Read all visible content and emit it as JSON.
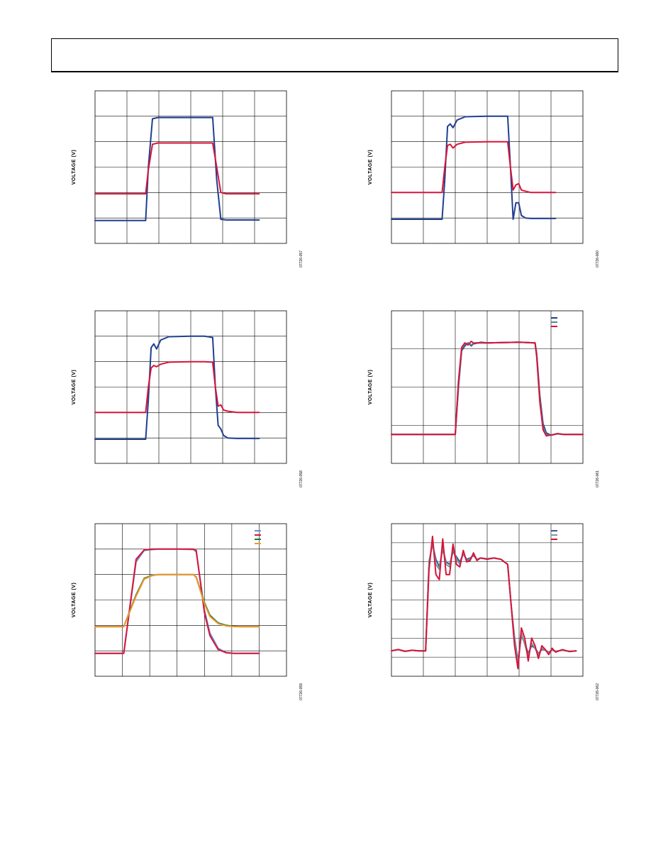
{
  "chart_data": [
    {
      "type": "line",
      "ylabel": "VOLTAGE (V)",
      "figure_id": "07726-057",
      "grid": "on",
      "x": [
        0,
        1,
        1.85,
        1.95,
        2.1,
        2.3,
        3.0,
        4.0,
        4.3,
        4.45,
        4.6,
        4.8,
        6.0
      ],
      "series": [
        {
          "color": "#1f3f8f",
          "values": [
            0.9,
            0.9,
            0.9,
            3.0,
            4.9,
            4.95,
            4.95,
            4.95,
            4.95,
            2.5,
            0.95,
            0.92,
            0.92
          ]
        },
        {
          "color": "#d8143a",
          "values": [
            1.95,
            1.95,
            1.95,
            2.9,
            3.9,
            3.95,
            3.95,
            3.95,
            3.95,
            3.0,
            2.0,
            1.95,
            1.95
          ]
        }
      ],
      "xlim": [
        0,
        7
      ],
      "ylim": [
        0,
        6
      ]
    },
    {
      "type": "line",
      "ylabel": "VOLTAGE (V)",
      "figure_id": "07726-060",
      "grid": "on",
      "x": [
        0,
        1,
        1.85,
        1.95,
        2.05,
        2.15,
        2.25,
        2.4,
        2.7,
        3.5,
        4.0,
        4.25,
        4.35,
        4.45,
        4.55,
        4.65,
        4.75,
        4.9,
        5.1,
        6.0
      ],
      "series": [
        {
          "color": "#1f3f8f",
          "values": [
            0.95,
            0.95,
            0.95,
            2.5,
            4.6,
            4.7,
            4.55,
            4.85,
            4.98,
            5.0,
            5.0,
            5.0,
            3.0,
            0.95,
            1.6,
            1.6,
            1.1,
            1.0,
            0.98,
            0.98
          ]
        },
        {
          "color": "#d8143a",
          "values": [
            2.0,
            2.0,
            2.0,
            3.0,
            3.85,
            3.9,
            3.75,
            3.9,
            3.98,
            4.0,
            4.0,
            4.0,
            3.0,
            2.1,
            2.3,
            2.35,
            2.1,
            2.05,
            2.0,
            2.0
          ]
        }
      ],
      "xlim": [
        0,
        7
      ],
      "ylim": [
        0,
        6
      ]
    },
    {
      "type": "line",
      "ylabel": "VOLTAGE (V)",
      "figure_id": "07726-058",
      "grid": "on",
      "x": [
        0,
        1,
        1.85,
        1.95,
        2.05,
        2.15,
        2.25,
        2.4,
        2.7,
        3.5,
        4.0,
        4.3,
        4.4,
        4.5,
        4.6,
        4.7,
        4.85,
        5.2,
        6.0
      ],
      "series": [
        {
          "color": "#1f3f8f",
          "values": [
            0.95,
            0.95,
            0.95,
            2.5,
            4.55,
            4.7,
            4.5,
            4.85,
            4.98,
            5.0,
            5.0,
            4.95,
            3.0,
            1.5,
            1.35,
            1.1,
            1.0,
            0.98,
            0.98
          ]
        },
        {
          "color": "#d8143a",
          "values": [
            2.0,
            2.0,
            2.0,
            3.0,
            3.75,
            3.85,
            3.8,
            3.9,
            3.98,
            4.0,
            4.0,
            3.98,
            3.0,
            2.25,
            2.3,
            2.1,
            2.05,
            2.0,
            2.0
          ]
        }
      ],
      "xlim": [
        0,
        7
      ],
      "ylim": [
        0,
        6
      ]
    },
    {
      "type": "line",
      "ylabel": "VOLTAGE (V)",
      "figure_id": "07726-061",
      "grid": "on",
      "x": [
        0,
        1,
        2.0,
        2.1,
        2.2,
        2.3,
        2.4,
        2.5,
        2.6,
        2.8,
        3.0,
        4.0,
        4.5,
        4.55,
        4.65,
        4.75,
        4.85,
        5.0,
        5.2,
        5.4,
        6.0
      ],
      "series": [
        {
          "color": "#1f3f8f",
          "values": [
            0.95,
            0.95,
            0.95,
            2.5,
            3.7,
            3.85,
            3.95,
            3.85,
            3.95,
            3.95,
            3.95,
            3.97,
            3.95,
            3.6,
            2.2,
            1.3,
            1.0,
            0.92,
            0.97,
            0.95,
            0.95
          ]
        },
        {
          "color": "#4a8a9a",
          "values": [
            0.95,
            0.95,
            0.95,
            2.6,
            3.75,
            3.9,
            3.95,
            3.88,
            3.95,
            3.95,
            3.95,
            3.97,
            3.95,
            3.55,
            2.1,
            1.2,
            0.95,
            0.92,
            0.98,
            0.95,
            0.95
          ]
        },
        {
          "color": "#d8143a",
          "values": [
            0.95,
            0.95,
            0.95,
            2.7,
            3.8,
            3.95,
            3.88,
            4.0,
            3.92,
            3.97,
            3.95,
            3.97,
            3.95,
            3.5,
            2.0,
            1.1,
            0.9,
            0.93,
            0.97,
            0.95,
            0.95
          ]
        }
      ],
      "xlim": [
        0,
        6
      ],
      "ylim": [
        0,
        5
      ]
    },
    {
      "type": "line",
      "ylabel": "VOLTAGE (V)",
      "figure_id": "07726-059",
      "grid": "on",
      "x": [
        0,
        1,
        1.05,
        1.5,
        1.8,
        2.1,
        2.3,
        2.8,
        3.0,
        3.6,
        3.7,
        4.0,
        4.2,
        4.5,
        4.8,
        5.1,
        5.3,
        6.0
      ],
      "series": [
        {
          "color": "#6a8fc8",
          "values": [
            0.9,
            0.9,
            0.9,
            4.5,
            4.95,
            4.98,
            5.0,
            5.0,
            5.0,
            4.98,
            4.9,
            2.6,
            1.7,
            1.1,
            0.93,
            0.9,
            0.9,
            0.9
          ]
        },
        {
          "color": "#d8143a",
          "values": [
            0.9,
            0.9,
            0.9,
            4.6,
            4.97,
            5.0,
            5.0,
            5.0,
            5.0,
            5.0,
            4.95,
            2.5,
            1.6,
            1.05,
            0.92,
            0.9,
            0.9,
            0.9
          ]
        },
        {
          "color": "#1a7a3a",
          "values": [
            1.95,
            1.95,
            1.95,
            3.2,
            3.85,
            3.97,
            4.0,
            4.0,
            4.0,
            4.0,
            3.9,
            2.9,
            2.4,
            2.1,
            2.0,
            1.96,
            1.95,
            1.95
          ]
        },
        {
          "color": "#f0962a",
          "values": [
            1.95,
            1.95,
            1.95,
            3.15,
            3.82,
            3.96,
            4.0,
            4.0,
            4.0,
            4.0,
            3.88,
            2.85,
            2.35,
            2.07,
            1.98,
            1.95,
            1.95,
            1.95
          ]
        }
      ],
      "xlim": [
        0,
        7
      ],
      "ylim": [
        0,
        6
      ]
    },
    {
      "type": "line",
      "ylabel": "VOLTAGE (V)",
      "figure_id": "07726-062",
      "grid": "on",
      "x": [
        0,
        0.2,
        0.4,
        0.6,
        0.8,
        1.0,
        1.1,
        1.2,
        1.3,
        1.4,
        1.5,
        1.6,
        1.7,
        1.8,
        1.9,
        2.0,
        2.1,
        2.2,
        2.3,
        2.4,
        2.5,
        2.6,
        2.8,
        3.0,
        3.2,
        3.4,
        3.5,
        3.6,
        3.7,
        3.8,
        3.9,
        4.0,
        4.1,
        4.2,
        4.3,
        4.4,
        4.5,
        4.6,
        4.7,
        4.8,
        5.0,
        5.2,
        5.4
      ],
      "series": [
        {
          "color": "#3a5a9a",
          "values": [
            1.0,
            1.05,
            0.98,
            1.02,
            1.0,
            1.0,
            4.5,
            5.2,
            4.6,
            4.3,
            5.0,
            4.5,
            4.4,
            4.9,
            4.7,
            4.5,
            4.8,
            4.6,
            4.65,
            4.75,
            4.6,
            4.65,
            4.62,
            4.65,
            4.6,
            4.4,
            2.8,
            1.5,
            0.6,
            1.6,
            1.3,
            0.9,
            1.2,
            1.1,
            0.9,
            1.05,
            1.02,
            0.95,
            1.03,
            0.98,
            1.02,
            0.98,
            1.0
          ]
        },
        {
          "color": "#7a9a9a",
          "values": [
            1.0,
            1.05,
            0.98,
            1.02,
            1.0,
            1.0,
            4.4,
            5.3,
            4.4,
            4.2,
            5.1,
            4.4,
            4.3,
            5.0,
            4.6,
            4.4,
            4.85,
            4.55,
            4.6,
            4.8,
            4.6,
            4.65,
            4.62,
            4.65,
            4.6,
            4.4,
            2.8,
            1.4,
            0.5,
            1.7,
            1.25,
            0.8,
            1.3,
            1.1,
            0.85,
            1.1,
            1.02,
            0.92,
            1.05,
            0.98,
            1.02,
            0.98,
            1.0
          ]
        },
        {
          "color": "#d8143a",
          "values": [
            1.0,
            1.05,
            0.98,
            1.02,
            1.0,
            1.0,
            4.2,
            5.5,
            4.0,
            3.8,
            5.4,
            4.0,
            4.0,
            5.2,
            4.4,
            4.3,
            4.95,
            4.5,
            4.55,
            4.85,
            4.55,
            4.65,
            4.6,
            4.65,
            4.6,
            4.4,
            2.8,
            1.2,
            0.3,
            1.9,
            1.5,
            0.6,
            1.5,
            1.2,
            0.7,
            1.2,
            1.05,
            0.85,
            1.1,
            0.95,
            1.05,
            0.97,
            1.0
          ]
        }
      ],
      "xlim": [
        0,
        5.6
      ],
      "ylim": [
        0,
        6
      ]
    }
  ]
}
